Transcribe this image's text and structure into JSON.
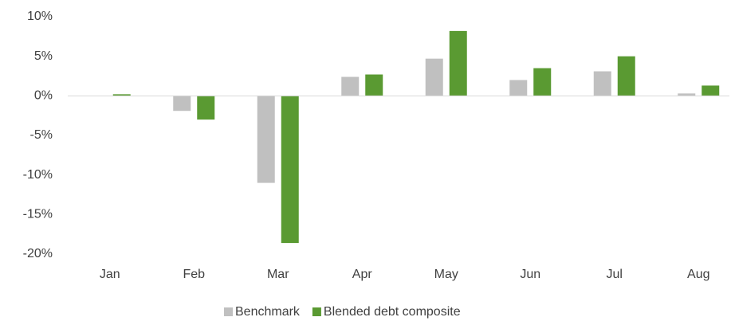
{
  "chart_data": {
    "type": "bar",
    "categories": [
      "Jan",
      "Feb",
      "Mar",
      "Apr",
      "May",
      "Jun",
      "Jul",
      "Aug"
    ],
    "series": [
      {
        "name": "Benchmark",
        "color": "#c0c0c0",
        "values": [
          0.0,
          -1.9,
          -11.0,
          2.4,
          4.7,
          2.0,
          3.1,
          0.3
        ]
      },
      {
        "name": "Blended debt composite",
        "color": "#5a9a32",
        "values": [
          0.2,
          -3.0,
          -18.6,
          2.7,
          8.2,
          3.5,
          5.0,
          1.3
        ]
      }
    ],
    "ylim": [
      -20,
      10
    ],
    "yticks": [
      {
        "value": -20,
        "label": "-20%"
      },
      {
        "value": -15,
        "label": "-15%"
      },
      {
        "value": -10,
        "label": "-10%"
      },
      {
        "value": -5,
        "label": "-5%"
      },
      {
        "value": 0,
        "label": "0%"
      },
      {
        "value": 5,
        "label": "5%"
      },
      {
        "value": 10,
        "label": "10%"
      }
    ],
    "grid": false,
    "legend": "bottom"
  }
}
